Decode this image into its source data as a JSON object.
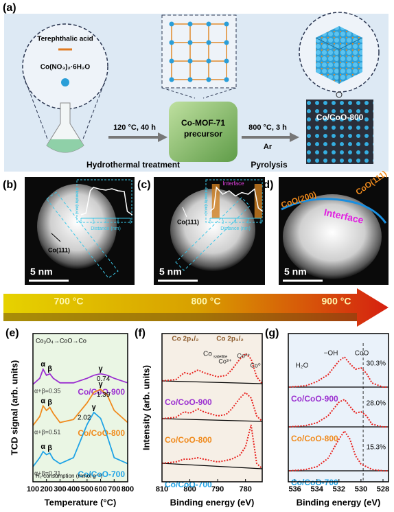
{
  "panel_a": {
    "label": "(a)",
    "linker": "Terephthalic acid",
    "metal_salt": "Co(NO₃)₂·6H₂O",
    "step1": "120 °C, 40 h",
    "step1_name": "Hydrothermal treatment",
    "precursor": [
      "Co-MOF-71",
      "precursor"
    ],
    "step2": "800 °C, 3 h",
    "step2_gas": "Ar",
    "step2_name": "Pyrolysis",
    "product": "Co/CoO-800"
  },
  "panel_b": {
    "label": "(b)",
    "inset_ylabel": "Intensity (a.u.)",
    "inset_xlabel": "Distance (nm)",
    "inset_xticks": [
      0,
      2,
      4,
      6,
      8
    ],
    "inset_x": [
      0,
      0.8,
      1.5,
      2,
      3,
      4,
      5,
      6,
      7,
      7.5,
      8.3
    ],
    "inset_profile": [
      0.1,
      0.15,
      0.8,
      0.9,
      0.85,
      0.82,
      0.86,
      0.8,
      0.78,
      0.2,
      0.1
    ],
    "plane": "Co(111)",
    "scale_bar": "5 nm"
  },
  "panel_c": {
    "label": "(c)",
    "inset_ylabel": "Intensity (a.u.)",
    "inset_xlabel": "Distance (nm)",
    "inset_xticks": [
      0,
      2,
      4,
      6,
      8
    ],
    "inset_x": [
      0,
      0.6,
      1,
      2,
      3,
      4,
      5,
      6,
      7,
      7.6,
      8.3
    ],
    "inset_profile": [
      0.2,
      0.3,
      0.9,
      0.7,
      0.8,
      0.65,
      0.75,
      0.7,
      0.85,
      0.3,
      0.2
    ],
    "inset_note": "Interface",
    "plane": "Co(111)",
    "scale_bar": "5 nm"
  },
  "panel_d": {
    "label": "(d)",
    "planes": [
      "CoO(200)",
      "CoO(111)"
    ],
    "interface": "Interface",
    "scale_bar": "5 nm"
  },
  "temperature_arrow": [
    "700 °C",
    "800 °C",
    "900 °C"
  ],
  "chart_data": [
    {
      "type": "line",
      "label": "(e)",
      "xlabel": "Temperature (°C)",
      "ylabel": "TCD signal (arb. units)",
      "xlim": [
        100,
        800
      ],
      "xticks": [
        100,
        200,
        300,
        400,
        500,
        600,
        700,
        800
      ],
      "x": [
        100,
        150,
        175,
        200,
        225,
        250,
        300,
        400,
        500,
        550,
        600,
        650,
        700,
        800
      ],
      "peak_labels": [
        "α",
        "β",
        "γ"
      ],
      "annotations": [
        "Co₃O₄→CoO→Co",
        "H₂ consumption (mmol g⁻¹)"
      ],
      "series": [
        {
          "name": "Co/CoO-900",
          "color": "#9b30d0",
          "name_color": "#9b30d0",
          "alpha_beta": "α+β=0.35",
          "gamma": 0.74,
          "values": [
            0,
            0.4,
            1.0,
            0.6,
            0.7,
            0.4,
            0.1,
            0.1,
            0.4,
            0.6,
            0.7,
            0.6,
            0.4,
            0.1
          ]
        },
        {
          "name": "Co/CoO-800",
          "color": "#f08a1c",
          "name_color": "#f08a1c",
          "alpha_beta": "α+β=0.51",
          "gamma": 1.39,
          "values": [
            0,
            0.6,
            1.3,
            1.0,
            1.2,
            0.8,
            0.2,
            0.4,
            1.5,
            2.2,
            2.4,
            2.0,
            1.0,
            0.2
          ]
        },
        {
          "name": "Co/CoO-700",
          "color": "#1fa3e6",
          "name_color": "#1fa3e6",
          "alpha_beta": "α+β=0.31",
          "gamma": 2.02,
          "values": [
            0,
            0.6,
            1.0,
            0.8,
            0.9,
            0.5,
            0.2,
            0.6,
            2.8,
            3.6,
            3.2,
            2.0,
            0.6,
            0.2
          ]
        }
      ]
    },
    {
      "type": "line",
      "label": "(f)",
      "xlabel": "Binding energy (eV)",
      "ylabel": "Intensity (arb. units)",
      "xlim": [
        810,
        774
      ],
      "xticks": [
        810,
        800,
        790,
        780
      ],
      "x": [
        810,
        805,
        802,
        800,
        797,
        795,
        790,
        787,
        785,
        782,
        780,
        778,
        776,
        774
      ],
      "annotations": [
        "Co 2p₁/₂",
        "Co 2p₃/₂",
        "Co",
        "satellite",
        "Co³⁺",
        "Co²⁺",
        "Co⁰"
      ],
      "series": [
        {
          "name": "Co/CoO-900",
          "color": "#e8201c",
          "name_color": "#9b30d0",
          "values": [
            1.0,
            1.1,
            1.6,
            1.5,
            1.8,
            1.6,
            1.3,
            1.4,
            1.8,
            2.6,
            3.0,
            2.6,
            1.3,
            0.8
          ]
        },
        {
          "name": "Co/CoO-800",
          "color": "#e8201c",
          "name_color": "#f08a1c",
          "values": [
            1.0,
            1.1,
            1.5,
            1.4,
            1.7,
            1.5,
            1.2,
            1.3,
            1.7,
            2.5,
            2.9,
            2.5,
            1.2,
            0.8
          ]
        },
        {
          "name": "Co/CoO-700",
          "color": "#e8201c",
          "name_color": "#1fa3e6",
          "values": [
            1.0,
            1.1,
            1.3,
            1.3,
            1.4,
            1.3,
            1.1,
            1.2,
            1.3,
            1.6,
            2.2,
            3.8,
            1.0,
            0.6
          ]
        }
      ]
    },
    {
      "type": "line",
      "label": "(g)",
      "xlabel": "Binding energy (eV)",
      "xlim": [
        536.6,
        527.5
      ],
      "xticks": [
        536,
        534,
        532,
        530,
        528
      ],
      "x": [
        536.5,
        535,
        534,
        533,
        532,
        531.5,
        531,
        530.5,
        530,
        529.5,
        529,
        528,
        527.5
      ],
      "reference_x": 529.8,
      "annotations": [
        "H₂O",
        "−OH",
        "CoO"
      ],
      "series": [
        {
          "name": "Co/CoO-900",
          "color": "#e8201c",
          "name_color": "#9b30d0",
          "fraction_label": "30.3%",
          "values": [
            0.3,
            0.4,
            0.7,
            1.2,
            2.2,
            2.5,
            2.0,
            1.6,
            1.7,
            1.3,
            0.6,
            0.3,
            0.3
          ]
        },
        {
          "name": "Co/CoO-800",
          "color": "#e8201c",
          "name_color": "#f08a1c",
          "fraction_label": "28.0%",
          "values": [
            0.3,
            0.4,
            0.6,
            1.1,
            2.1,
            2.3,
            1.8,
            1.3,
            1.4,
            1.1,
            0.5,
            0.3,
            0.3
          ]
        },
        {
          "name": "Co/CoO-700",
          "color": "#e8201c",
          "name_color": "#1fa3e6",
          "fraction_label": "15.3%",
          "values": [
            0.3,
            0.4,
            0.6,
            1.2,
            2.6,
            3.2,
            2.6,
            1.4,
            0.8,
            0.6,
            0.4,
            0.3,
            0.3
          ]
        }
      ]
    }
  ]
}
